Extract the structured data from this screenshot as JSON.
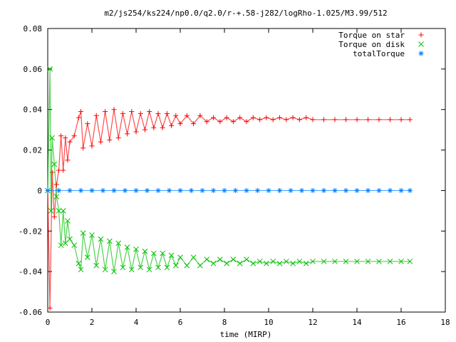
{
  "chart_data": {
    "type": "scatter",
    "title": "m2/js254/ks224/np0.0/q2.0/r-+.58-j282/logRho-1.025/M3.99/512",
    "xlabel": "time (MIRP)",
    "ylabel": "",
    "xlim": [
      0,
      18
    ],
    "ylim": [
      -0.06,
      0.08
    ],
    "x_ticks": [
      0,
      2,
      4,
      6,
      8,
      10,
      12,
      14,
      16,
      18
    ],
    "y_ticks": [
      -0.06,
      -0.04,
      -0.02,
      0,
      0.02,
      0.04,
      0.06,
      0.08
    ],
    "x_tick_labels": [
      "0",
      "2",
      "4",
      "6",
      "8",
      "10",
      "12",
      "14",
      "16",
      "18"
    ],
    "y_tick_labels": [
      "-0.06",
      "-0.04",
      "-0.02",
      "0",
      "0.02",
      "0.04",
      "0.06",
      "0.08"
    ],
    "grid": false,
    "legend_position": "top-right",
    "series": [
      {
        "name": "Torque on star",
        "color": "#ff0000",
        "marker": "plus",
        "x": [
          0.0,
          0.1,
          0.2,
          0.3,
          0.4,
          0.5,
          0.6,
          0.7,
          0.8,
          0.9,
          1.0,
          1.2,
          1.4,
          1.5,
          1.6,
          1.8,
          2.0,
          2.2,
          2.4,
          2.6,
          2.8,
          3.0,
          3.2,
          3.4,
          3.6,
          3.8,
          4.0,
          4.2,
          4.4,
          4.6,
          4.8,
          5.0,
          5.2,
          5.4,
          5.6,
          5.8,
          6.0,
          6.3,
          6.6,
          6.9,
          7.2,
          7.5,
          7.8,
          8.1,
          8.4,
          8.7,
          9.0,
          9.3,
          9.6,
          9.9,
          10.2,
          10.5,
          10.8,
          11.1,
          11.4,
          11.7,
          12.0,
          12.5,
          13.0,
          13.5,
          14.0,
          14.5,
          15.0,
          15.5,
          16.0,
          16.4
        ],
        "y": [
          0.0,
          -0.058,
          0.009,
          -0.013,
          0.003,
          0.01,
          0.027,
          0.01,
          0.026,
          0.015,
          0.024,
          0.027,
          0.036,
          0.039,
          0.021,
          0.033,
          0.022,
          0.037,
          0.024,
          0.039,
          0.025,
          0.04,
          0.026,
          0.038,
          0.028,
          0.039,
          0.029,
          0.038,
          0.03,
          0.039,
          0.031,
          0.038,
          0.031,
          0.038,
          0.032,
          0.037,
          0.033,
          0.037,
          0.033,
          0.037,
          0.034,
          0.036,
          0.034,
          0.036,
          0.034,
          0.036,
          0.034,
          0.036,
          0.035,
          0.036,
          0.035,
          0.036,
          0.035,
          0.036,
          0.035,
          0.036,
          0.035,
          0.035,
          0.035,
          0.035,
          0.035,
          0.035,
          0.035,
          0.035,
          0.035,
          0.035
        ]
      },
      {
        "name": "Torque on disk",
        "color": "#00c000",
        "marker": "cross",
        "x": [
          0.0,
          0.1,
          0.15,
          0.2,
          0.3,
          0.4,
          0.5,
          0.6,
          0.7,
          0.8,
          0.9,
          1.0,
          1.2,
          1.4,
          1.5,
          1.6,
          1.8,
          2.0,
          2.2,
          2.4,
          2.6,
          2.8,
          3.0,
          3.2,
          3.4,
          3.6,
          3.8,
          4.0,
          4.2,
          4.4,
          4.6,
          4.8,
          5.0,
          5.2,
          5.4,
          5.6,
          5.8,
          6.0,
          6.3,
          6.6,
          6.9,
          7.2,
          7.5,
          7.8,
          8.1,
          8.4,
          8.7,
          9.0,
          9.3,
          9.6,
          9.9,
          10.2,
          10.5,
          10.8,
          11.1,
          11.4,
          11.7,
          12.0,
          12.5,
          13.0,
          13.5,
          14.0,
          14.5,
          15.0,
          15.5,
          16.0,
          16.4
        ],
        "y": [
          0.0,
          0.06,
          -0.01,
          0.026,
          0.013,
          -0.003,
          -0.01,
          -0.027,
          -0.01,
          -0.026,
          -0.015,
          -0.024,
          -0.027,
          -0.036,
          -0.039,
          -0.021,
          -0.033,
          -0.022,
          -0.037,
          -0.024,
          -0.039,
          -0.025,
          -0.04,
          -0.026,
          -0.038,
          -0.028,
          -0.039,
          -0.029,
          -0.038,
          -0.03,
          -0.039,
          -0.031,
          -0.038,
          -0.031,
          -0.038,
          -0.032,
          -0.037,
          -0.033,
          -0.037,
          -0.033,
          -0.037,
          -0.034,
          -0.036,
          -0.034,
          -0.036,
          -0.034,
          -0.036,
          -0.034,
          -0.036,
          -0.035,
          -0.036,
          -0.035,
          -0.036,
          -0.035,
          -0.036,
          -0.035,
          -0.036,
          -0.035,
          -0.035,
          -0.035,
          -0.035,
          -0.035,
          -0.035,
          -0.035,
          -0.035,
          -0.035,
          -0.035
        ]
      },
      {
        "name": "totalTorque",
        "color": "#0080ff",
        "marker": "star",
        "x": [
          0.0,
          0.5,
          1.0,
          1.5,
          2.0,
          2.5,
          3.0,
          3.5,
          4.0,
          4.5,
          5.0,
          5.5,
          6.0,
          6.5,
          7.0,
          7.5,
          8.0,
          8.5,
          9.0,
          9.5,
          10.0,
          10.5,
          11.0,
          11.5,
          12.0,
          12.5,
          13.0,
          13.5,
          14.0,
          14.5,
          15.0,
          15.5,
          16.0,
          16.4
        ],
        "y": [
          0.0,
          0.0,
          0.0,
          0.0,
          0.0,
          0.0,
          0.0,
          0.0,
          0.0,
          0.0,
          0.0,
          0.0,
          0.0,
          0.0,
          0.0,
          0.0,
          0.0,
          0.0,
          0.0,
          0.0,
          0.0,
          0.0,
          0.0,
          0.0,
          0.0,
          0.0,
          0.0,
          0.0,
          0.0,
          0.0,
          0.0,
          0.0,
          0.0,
          0.0
        ]
      }
    ]
  }
}
